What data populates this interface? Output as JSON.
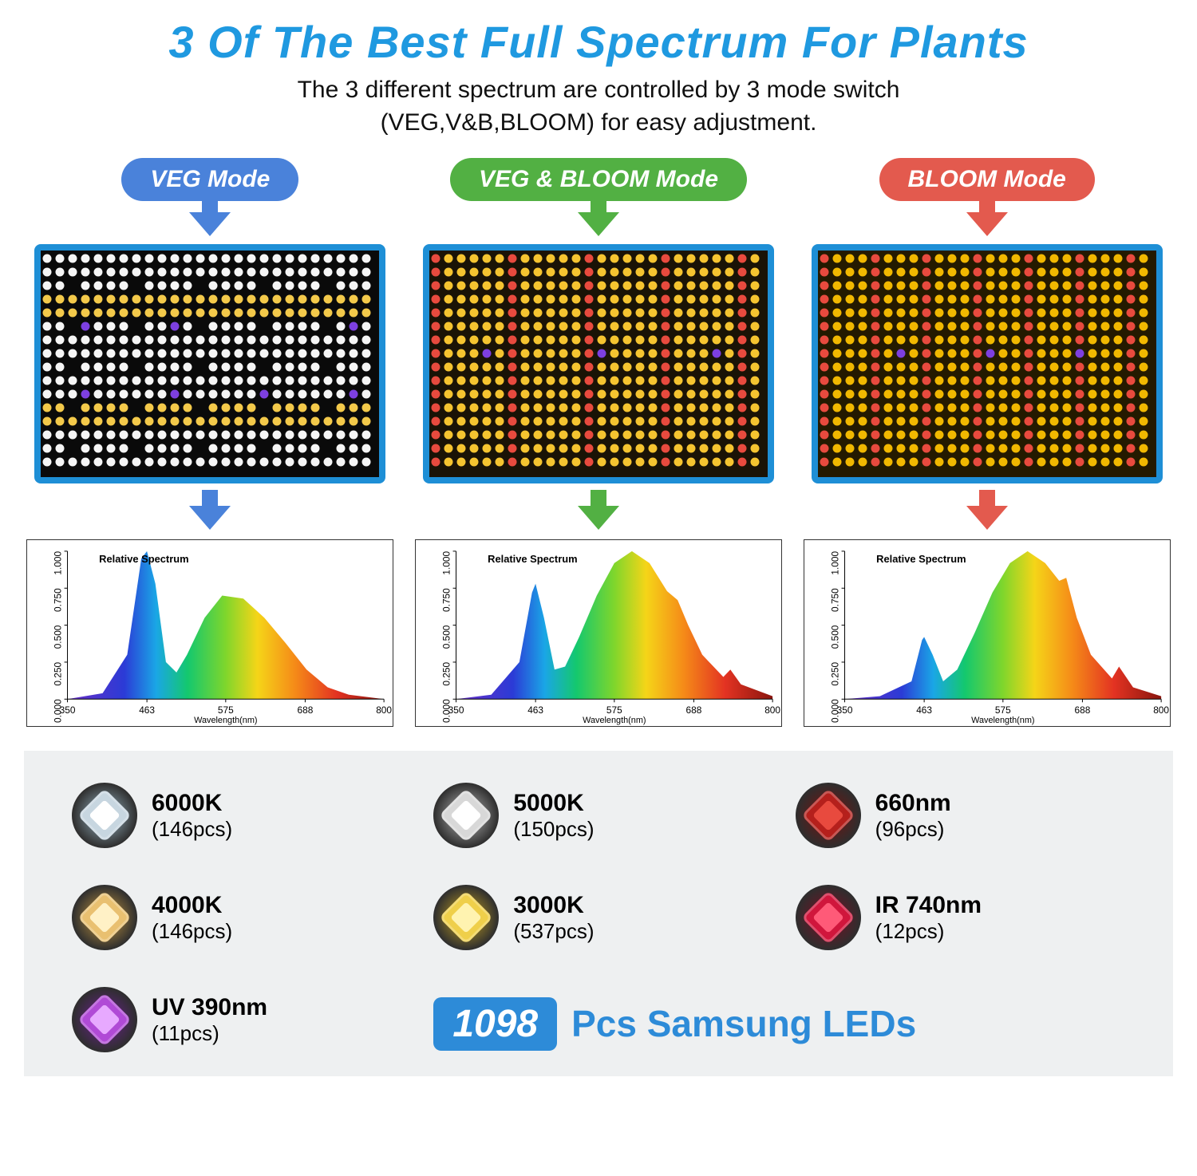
{
  "header": {
    "title": "3 Of The Best Full Spectrum For Plants",
    "title_color": "#1f99e0",
    "title_fontsize": 56,
    "subtitle_line1": "The 3 different spectrum are controlled by 3 mode switch",
    "subtitle_line2": "(VEG,V&B,BLOOM) for easy adjustment.",
    "subtitle_color": "#101010",
    "subtitle_fontsize": 30
  },
  "modes": [
    {
      "label": "VEG Mode",
      "pill_color": "#4a82da",
      "arrow_color": "#4a82da",
      "panel": {
        "bg": "#0a0a0a",
        "dominant_led": "#ffffff",
        "rows_pattern": "veg"
      },
      "spectrum": {
        "title": "Relative Spectrum",
        "xlabel": "Wavelength(nm)",
        "xlim": [
          350,
          800
        ],
        "xticks": [
          350,
          463,
          575,
          688,
          800
        ],
        "ylim": [
          0,
          1
        ],
        "yticks": [
          0.0,
          0.25,
          0.5,
          0.75,
          1.0
        ],
        "curve": [
          [
            350,
            0.0
          ],
          [
            400,
            0.04
          ],
          [
            435,
            0.3
          ],
          [
            455,
            0.95
          ],
          [
            463,
            1.0
          ],
          [
            475,
            0.78
          ],
          [
            490,
            0.25
          ],
          [
            505,
            0.18
          ],
          [
            520,
            0.3
          ],
          [
            545,
            0.55
          ],
          [
            570,
            0.7
          ],
          [
            600,
            0.68
          ],
          [
            630,
            0.55
          ],
          [
            660,
            0.38
          ],
          [
            690,
            0.2
          ],
          [
            720,
            0.08
          ],
          [
            750,
            0.03
          ],
          [
            800,
            0.0
          ]
        ],
        "gradient_stops": [
          [
            "0%",
            "#6a2ec6"
          ],
          [
            "18%",
            "#2b3bd6"
          ],
          [
            "28%",
            "#1aa6e6"
          ],
          [
            "38%",
            "#14c86e"
          ],
          [
            "50%",
            "#7fd62c"
          ],
          [
            "60%",
            "#f5d518"
          ],
          [
            "72%",
            "#f58a18"
          ],
          [
            "85%",
            "#e33322"
          ],
          [
            "100%",
            "#8a150e"
          ]
        ]
      }
    },
    {
      "label": "VEG & BLOOM Mode",
      "pill_color": "#52b043",
      "arrow_color": "#52b043",
      "panel": {
        "bg": "#1a1306",
        "dominant_led": "#f5c430",
        "rows_pattern": "vnb"
      },
      "spectrum": {
        "title": "Relative Spectrum",
        "xlabel": "Wavelength(nm)",
        "xlim": [
          350,
          800
        ],
        "xticks": [
          350,
          463,
          575,
          688,
          800
        ],
        "ylim": [
          0,
          1
        ],
        "yticks": [
          0.0,
          0.25,
          0.5,
          0.75,
          1.0
        ],
        "curve": [
          [
            350,
            0.0
          ],
          [
            400,
            0.03
          ],
          [
            440,
            0.25
          ],
          [
            458,
            0.72
          ],
          [
            463,
            0.78
          ],
          [
            475,
            0.55
          ],
          [
            490,
            0.2
          ],
          [
            505,
            0.22
          ],
          [
            525,
            0.42
          ],
          [
            550,
            0.7
          ],
          [
            575,
            0.92
          ],
          [
            600,
            1.0
          ],
          [
            625,
            0.92
          ],
          [
            650,
            0.73
          ],
          [
            665,
            0.67
          ],
          [
            680,
            0.5
          ],
          [
            700,
            0.3
          ],
          [
            730,
            0.15
          ],
          [
            740,
            0.2
          ],
          [
            755,
            0.1
          ],
          [
            800,
            0.02
          ]
        ],
        "gradient_stops": [
          [
            "0%",
            "#6a2ec6"
          ],
          [
            "18%",
            "#2b3bd6"
          ],
          [
            "28%",
            "#1aa6e6"
          ],
          [
            "38%",
            "#14c86e"
          ],
          [
            "50%",
            "#7fd62c"
          ],
          [
            "60%",
            "#f5d518"
          ],
          [
            "72%",
            "#f58a18"
          ],
          [
            "85%",
            "#e33322"
          ],
          [
            "100%",
            "#8a150e"
          ]
        ]
      }
    },
    {
      "label": "BLOOM Mode",
      "pill_color": "#e35a4e",
      "arrow_color": "#e35a4e",
      "panel": {
        "bg": "#241a00",
        "dominant_led": "#f1b800",
        "rows_pattern": "bloom"
      },
      "spectrum": {
        "title": "Relative Spectrum",
        "xlabel": "Wavelength(nm)",
        "xlim": [
          350,
          800
        ],
        "xticks": [
          350,
          463,
          575,
          688,
          800
        ],
        "ylim": [
          0,
          1
        ],
        "yticks": [
          0.0,
          0.25,
          0.5,
          0.75,
          1.0
        ],
        "curve": [
          [
            350,
            0.0
          ],
          [
            400,
            0.02
          ],
          [
            445,
            0.12
          ],
          [
            460,
            0.4
          ],
          [
            463,
            0.42
          ],
          [
            475,
            0.3
          ],
          [
            490,
            0.12
          ],
          [
            510,
            0.2
          ],
          [
            535,
            0.45
          ],
          [
            560,
            0.72
          ],
          [
            585,
            0.92
          ],
          [
            610,
            1.0
          ],
          [
            635,
            0.92
          ],
          [
            655,
            0.8
          ],
          [
            665,
            0.82
          ],
          [
            680,
            0.55
          ],
          [
            700,
            0.3
          ],
          [
            730,
            0.14
          ],
          [
            740,
            0.22
          ],
          [
            760,
            0.08
          ],
          [
            800,
            0.02
          ]
        ],
        "gradient_stops": [
          [
            "0%",
            "#6a2ec6"
          ],
          [
            "18%",
            "#2b3bd6"
          ],
          [
            "28%",
            "#1aa6e6"
          ],
          [
            "38%",
            "#14c86e"
          ],
          [
            "50%",
            "#7fd62c"
          ],
          [
            "60%",
            "#f5d518"
          ],
          [
            "72%",
            "#f58a18"
          ],
          [
            "85%",
            "#e33322"
          ],
          [
            "100%",
            "#8a150e"
          ]
        ]
      }
    }
  ],
  "leds": {
    "items": [
      {
        "name": "6000K",
        "count": "(146pcs)",
        "chip_outer": "#c7d6e0",
        "chip_inner": "#ffffff",
        "glow": "#9ab7c6"
      },
      {
        "name": "5000K",
        "count": "(150pcs)",
        "chip_outer": "#d8d8d8",
        "chip_inner": "#ffffff",
        "glow": "#bcbcbc"
      },
      {
        "name": "660nm",
        "count": "(96pcs)",
        "chip_outer": "#b5201c",
        "chip_inner": "#e84a3e",
        "glow": "#7a0f0c"
      },
      {
        "name": "4000K",
        "count": "(146pcs)",
        "chip_outer": "#e9c070",
        "chip_inner": "#fff1c6",
        "glow": "#c99a3f"
      },
      {
        "name": "3000K",
        "count": "(537pcs)",
        "chip_outer": "#efcf4a",
        "chip_inner": "#fff3b0",
        "glow": "#caa51f"
      },
      {
        "name": "IR 740nm",
        "count": "(12pcs)",
        "chip_outer": "#d0163c",
        "chip_inner": "#ff5a78",
        "glow": "#7e0b22"
      },
      {
        "name": "UV 390nm",
        "count": "(11pcs)",
        "chip_outer": "#b04ad6",
        "chip_inner": "#e7a9ff",
        "glow": "#6e1f93"
      }
    ],
    "total_number": "1098",
    "total_text": "Pcs Samsung LEDs",
    "badge_bg": "#2d8bd8"
  },
  "panel_frame_color": "#1e8fd6"
}
